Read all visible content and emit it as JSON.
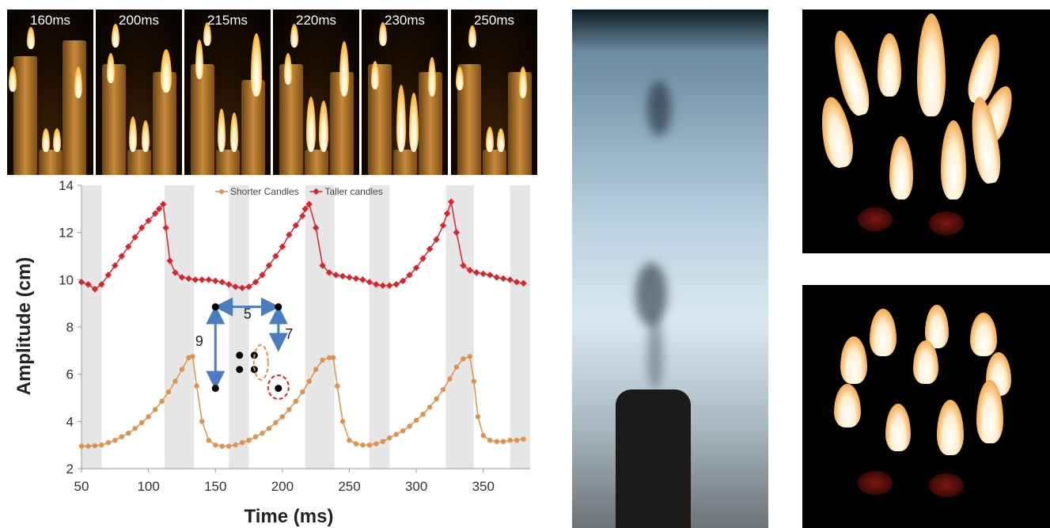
{
  "frames": {
    "labels": [
      "160ms",
      "200ms",
      "215ms",
      "220ms",
      "230ms",
      "250ms"
    ]
  },
  "chart_data": {
    "type": "line",
    "title": "",
    "xlabel": "Time (ms)",
    "ylabel": "Amplitude (cm)",
    "xlim": [
      50,
      385
    ],
    "ylim": [
      2,
      14
    ],
    "xticks": [
      50,
      100,
      150,
      200,
      250,
      300,
      350
    ],
    "yticks": [
      2,
      4,
      6,
      8,
      10,
      12,
      14
    ],
    "legend": {
      "placement": "top-center"
    },
    "shaded_bands": [
      [
        50,
        65
      ],
      [
        112,
        134
      ],
      [
        160,
        175
      ],
      [
        217,
        239
      ],
      [
        265,
        280
      ],
      [
        322,
        343
      ],
      [
        370,
        385
      ]
    ],
    "series": [
      {
        "name": "Shorter Candles",
        "color": "#e0924a",
        "x": [
          50,
          55,
          60,
          65,
          70,
          75,
          80,
          85,
          90,
          95,
          100,
          105,
          110,
          115,
          120,
          125,
          130,
          133,
          136,
          140,
          145,
          150,
          155,
          160,
          165,
          170,
          175,
          180,
          185,
          190,
          195,
          200,
          205,
          210,
          215,
          220,
          225,
          230,
          235,
          238,
          241,
          245,
          250,
          255,
          260,
          265,
          270,
          275,
          280,
          285,
          290,
          295,
          300,
          305,
          310,
          315,
          320,
          325,
          330,
          335,
          340,
          343,
          346,
          350,
          355,
          360,
          365,
          370,
          375,
          380
        ],
        "values": [
          2.95,
          2.95,
          2.97,
          3.0,
          3.1,
          3.2,
          3.35,
          3.5,
          3.7,
          3.95,
          4.2,
          4.5,
          4.85,
          5.25,
          5.7,
          6.2,
          6.7,
          6.75,
          5.5,
          4.0,
          3.2,
          3.0,
          2.95,
          2.95,
          3.0,
          3.1,
          3.2,
          3.35,
          3.5,
          3.7,
          3.95,
          4.2,
          4.5,
          4.85,
          5.25,
          5.7,
          6.2,
          6.6,
          6.7,
          6.7,
          5.5,
          4.0,
          3.2,
          3.05,
          3.0,
          3.0,
          3.05,
          3.15,
          3.3,
          3.45,
          3.6,
          3.8,
          4.05,
          4.3,
          4.6,
          4.95,
          5.35,
          5.8,
          6.3,
          6.65,
          6.75,
          5.7,
          4.2,
          3.4,
          3.2,
          3.15,
          3.15,
          3.2,
          3.2,
          3.25
        ]
      },
      {
        "name": "Taller candles",
        "color": "#d9252a",
        "x": [
          50,
          55,
          60,
          65,
          70,
          75,
          80,
          85,
          90,
          95,
          100,
          105,
          108,
          111,
          113,
          116,
          120,
          125,
          130,
          135,
          140,
          145,
          150,
          155,
          160,
          165,
          170,
          175,
          180,
          185,
          190,
          195,
          200,
          205,
          210,
          215,
          217,
          220,
          225,
          230,
          235,
          240,
          245,
          250,
          255,
          260,
          265,
          270,
          275,
          280,
          285,
          290,
          295,
          300,
          305,
          310,
          315,
          320,
          323,
          326,
          330,
          335,
          340,
          345,
          350,
          355,
          360,
          365,
          370,
          375,
          380
        ],
        "values": [
          9.9,
          9.8,
          9.6,
          9.8,
          10.2,
          10.6,
          11.0,
          11.4,
          11.8,
          12.2,
          12.5,
          12.8,
          13.0,
          13.2,
          12.2,
          10.8,
          10.3,
          10.1,
          10.05,
          10.0,
          10.0,
          10.0,
          9.95,
          9.9,
          9.8,
          9.7,
          9.65,
          9.7,
          9.9,
          10.2,
          10.6,
          11.0,
          11.4,
          11.9,
          12.3,
          12.7,
          13.0,
          13.2,
          12.2,
          10.6,
          10.3,
          10.2,
          10.15,
          10.1,
          10.05,
          10.0,
          9.9,
          9.8,
          9.75,
          9.75,
          9.8,
          9.95,
          10.2,
          10.5,
          10.9,
          11.3,
          11.7,
          12.3,
          12.8,
          13.3,
          12.0,
          10.6,
          10.4,
          10.3,
          10.25,
          10.2,
          10.1,
          10.05,
          10.0,
          9.9,
          9.85
        ]
      }
    ],
    "annotations": {
      "labels": [
        "5",
        "9",
        "7"
      ]
    }
  }
}
